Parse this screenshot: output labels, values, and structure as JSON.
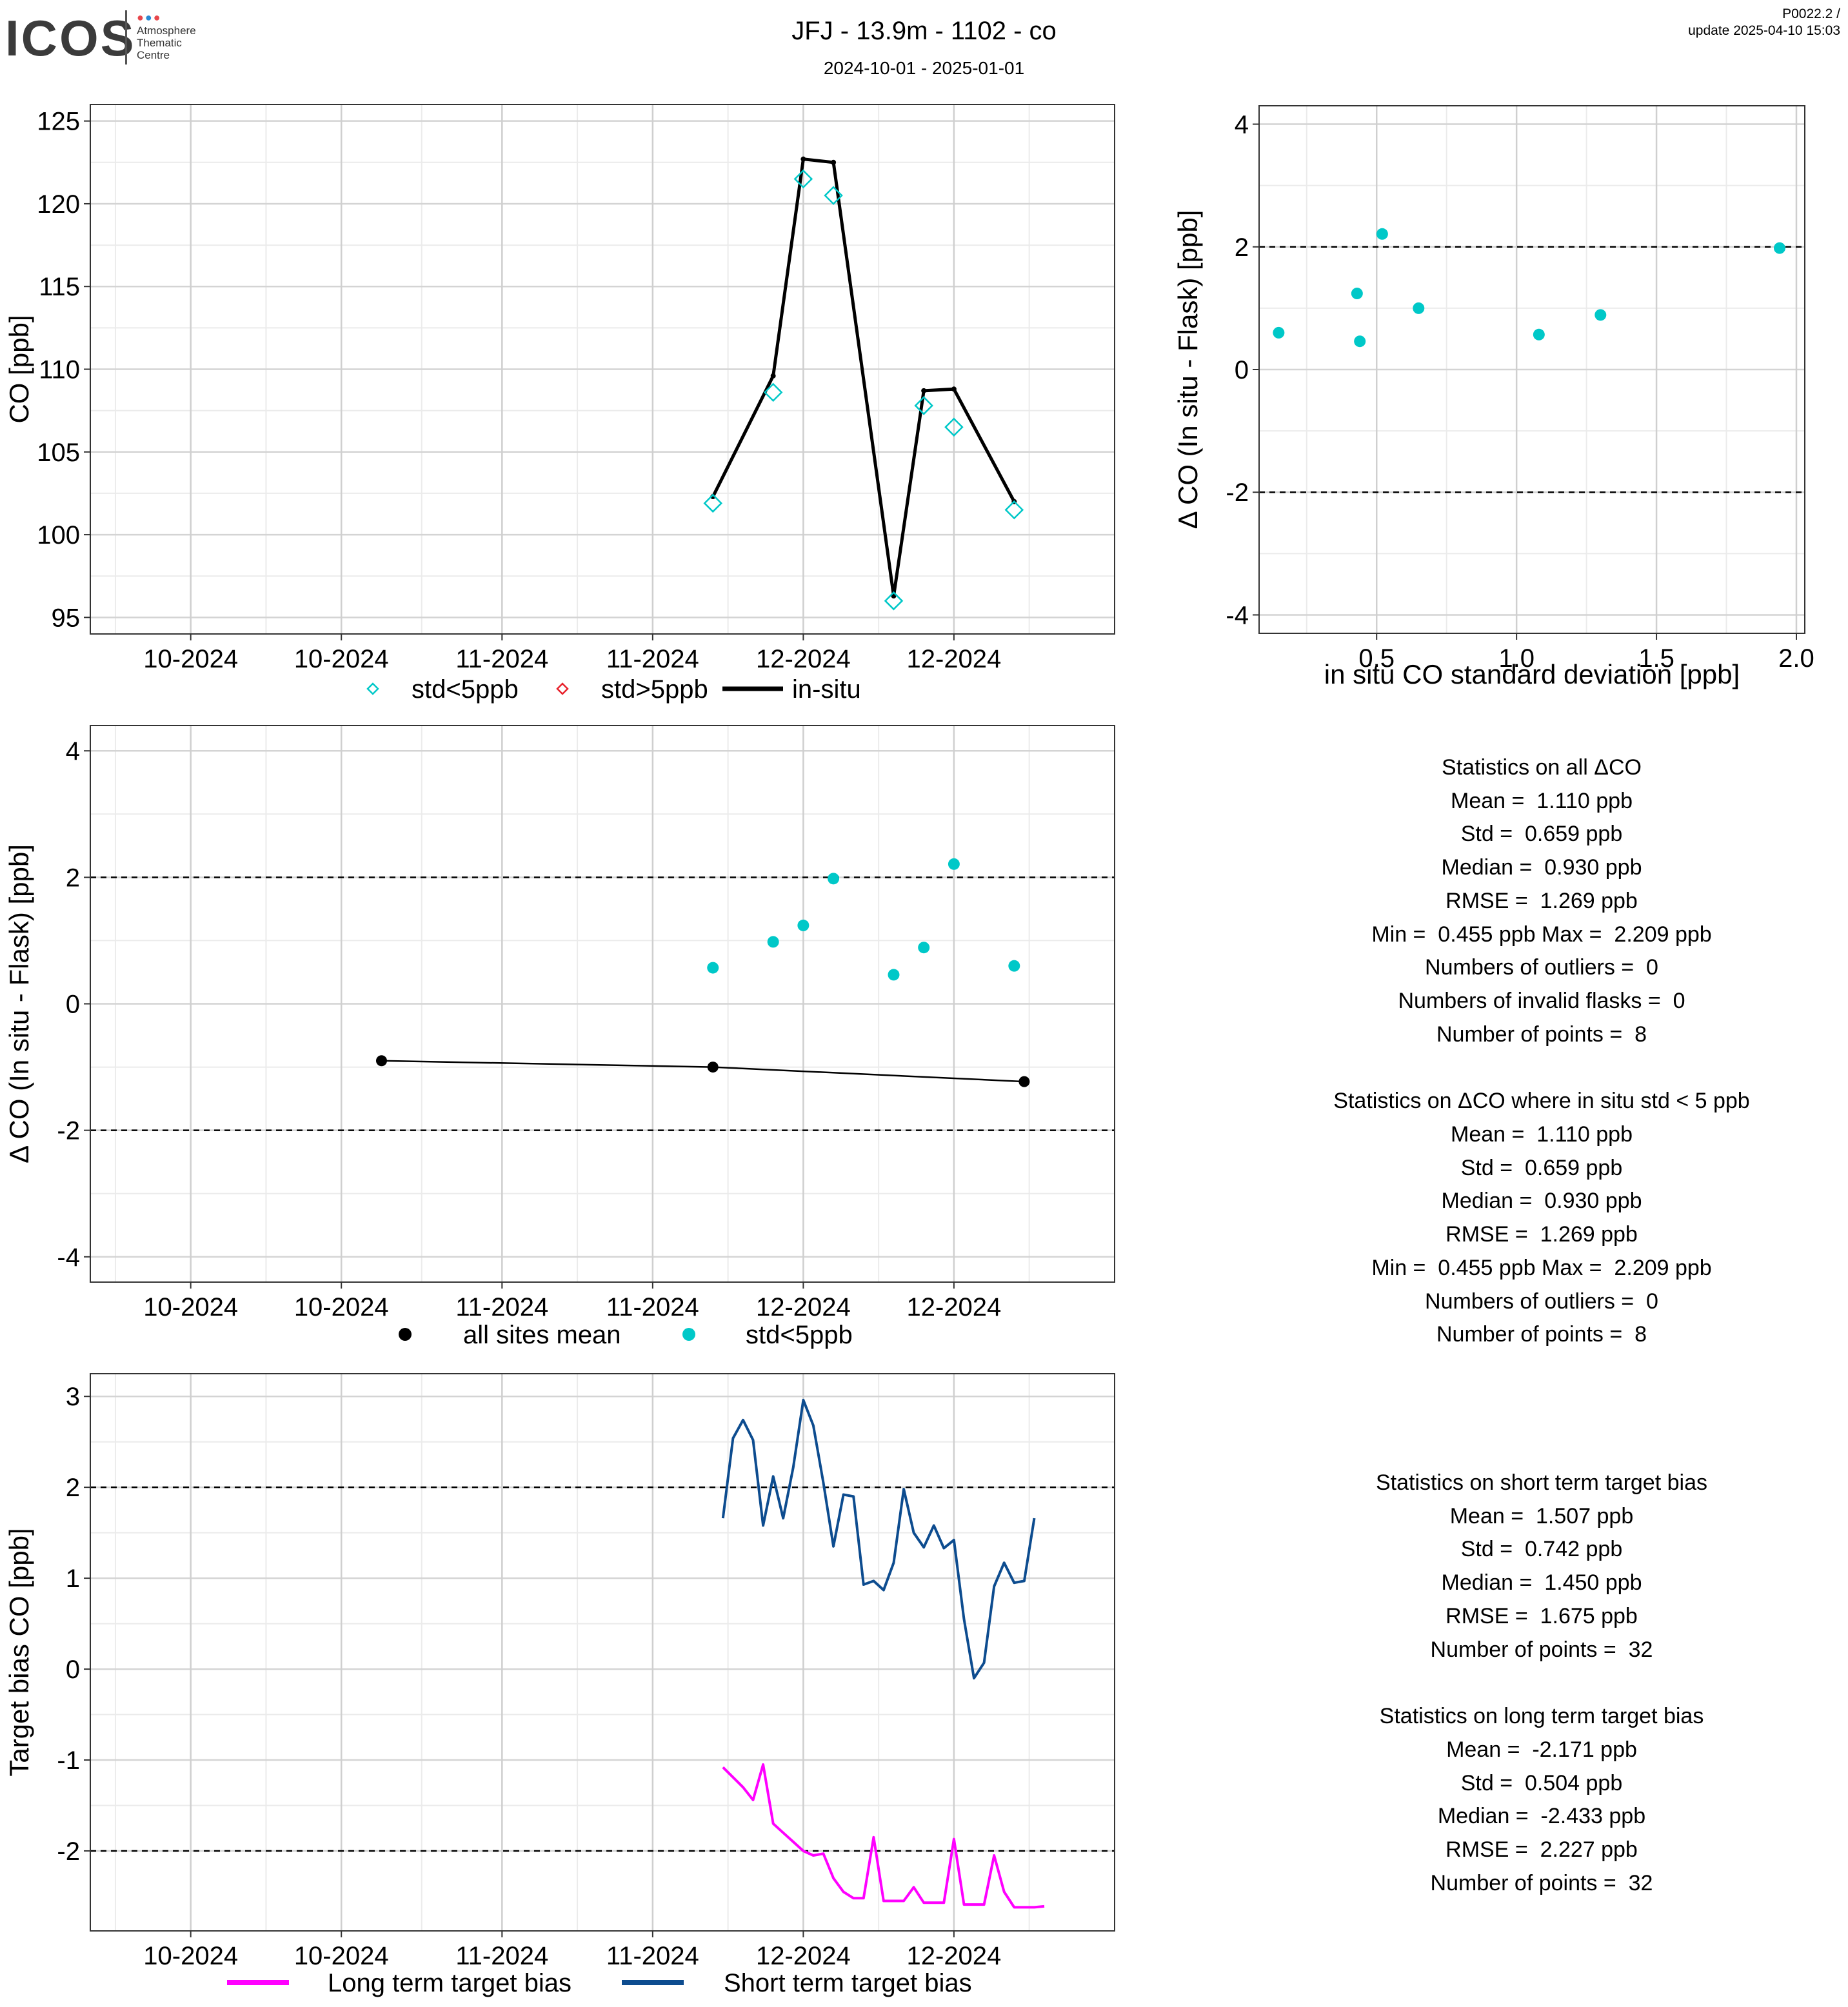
{
  "header": {
    "logo_text": "ICOS",
    "logo_sub": [
      "Atmosphere",
      "Thematic",
      "Centre"
    ],
    "title": "JFJ - 13.9m - 1102 - co",
    "period": "2024-10-01 - 2025-01-01",
    "version": "P0022.2 /",
    "update": "update  2025-04-10 15:03"
  },
  "colors": {
    "cyan": "#00C8C8",
    "red": "#E8202A",
    "black": "#000000",
    "magenta": "#FF00FF",
    "navy": "#0D4C8F",
    "logo_dot_1": "#e8474c",
    "logo_dot_2": "#2a8ad4",
    "logo_dot_3": "#e8474c"
  },
  "chart_data": [
    {
      "id": "co_timeseries",
      "type": "line",
      "ylabel": "CO [ppb]",
      "xlabel": "",
      "ylim": [
        94,
        126
      ],
      "x_range": [
        "2024-09-21",
        "2025-01-01"
      ],
      "x_ticks": [
        {
          "date": "2024-10-01",
          "label": "10-2024"
        },
        {
          "date": "2024-10-16",
          "label": "10-2024"
        },
        {
          "date": "2024-11-01",
          "label": "11-2024"
        },
        {
          "date": "2024-11-16",
          "label": "11-2024"
        },
        {
          "date": "2024-12-01",
          "label": "12-2024"
        },
        {
          "date": "2024-12-16",
          "label": "12-2024"
        }
      ],
      "y_ticks": [
        95,
        100,
        105,
        110,
        115,
        120,
        125
      ],
      "grid": true,
      "legend": {
        "position": "bottom",
        "entries": [
          {
            "label": "std<5ppb",
            "marker": "diamond",
            "color": "#00C8C8"
          },
          {
            "label": "std>5ppb",
            "marker": "diamond",
            "color": "#E8202A"
          },
          {
            "label": "in-situ",
            "marker": "line",
            "color": "#000000"
          }
        ]
      },
      "series": [
        {
          "name": "in-situ",
          "kind": "line",
          "color": "#000000",
          "x": [
            "2024-11-22",
            "2024-11-28",
            "2024-12-01",
            "2024-12-04",
            "2024-12-10",
            "2024-12-13",
            "2024-12-16",
            "2024-12-22"
          ],
          "values": [
            102.3,
            109.6,
            122.7,
            122.5,
            96.3,
            108.7,
            108.8,
            102.0
          ]
        },
        {
          "name": "std<5ppb",
          "kind": "diamond",
          "color": "#00C8C8",
          "x": [
            "2024-11-22",
            "2024-11-28",
            "2024-12-01",
            "2024-12-04",
            "2024-12-10",
            "2024-12-13",
            "2024-12-16",
            "2024-12-22"
          ],
          "values": [
            101.9,
            108.6,
            121.5,
            120.5,
            96.0,
            107.8,
            106.5,
            101.5
          ]
        }
      ]
    },
    {
      "id": "delta_vs_std",
      "type": "scatter",
      "xlabel": "in situ CO standard deviation [ppb]",
      "ylabel": "Δ CO (In situ - Flask) [ppb]",
      "xlim": [
        0.08,
        2.03
      ],
      "ylim": [
        -4.3,
        4.3
      ],
      "x_ticks": [
        0.5,
        1.0,
        1.5,
        2.0
      ],
      "x_tick_labels": [
        "0.5",
        "1.0",
        "1.5",
        "2.0"
      ],
      "y_ticks": [
        -4,
        -2,
        0,
        2,
        4
      ],
      "reference_lines": [
        2,
        -2
      ],
      "grid": true,
      "series": [
        {
          "name": "",
          "color": "#00C8C8",
          "x": [
            0.15,
            0.43,
            0.44,
            0.52,
            0.65,
            1.08,
            1.3,
            1.94
          ],
          "values": [
            0.6,
            1.24,
            0.46,
            2.21,
            1.0,
            0.57,
            0.89,
            1.98
          ]
        }
      ]
    },
    {
      "id": "delta_timeseries",
      "type": "scatter",
      "xlabel": "",
      "ylabel": "Δ CO (In situ - Flask) [ppb]",
      "ylim": [
        -4.4,
        4.4
      ],
      "x_range": [
        "2024-09-21",
        "2025-01-01"
      ],
      "x_ticks": [
        {
          "date": "2024-10-01",
          "label": "10-2024"
        },
        {
          "date": "2024-10-16",
          "label": "10-2024"
        },
        {
          "date": "2024-11-01",
          "label": "11-2024"
        },
        {
          "date": "2024-11-16",
          "label": "11-2024"
        },
        {
          "date": "2024-12-01",
          "label": "12-2024"
        },
        {
          "date": "2024-12-16",
          "label": "12-2024"
        }
      ],
      "y_ticks": [
        -4,
        -2,
        0,
        2,
        4
      ],
      "reference_lines": [
        2,
        -2
      ],
      "grid": true,
      "legend": {
        "position": "bottom",
        "entries": [
          {
            "label": "all sites mean",
            "marker": "dot",
            "color": "#000000"
          },
          {
            "label": "std<5ppb",
            "marker": "dot",
            "color": "#00C8C8"
          }
        ]
      },
      "series": [
        {
          "name": "all sites mean",
          "kind": "line-dot",
          "color": "#000000",
          "x": [
            "2024-10-20",
            "2024-11-22",
            "2024-12-23"
          ],
          "values": [
            -0.9,
            -1.0,
            -1.23
          ]
        },
        {
          "name": "std<5ppb",
          "kind": "dot",
          "color": "#00C8C8",
          "x": [
            "2024-11-22",
            "2024-11-28",
            "2024-12-01",
            "2024-12-04",
            "2024-12-10",
            "2024-12-13",
            "2024-12-16",
            "2024-12-22"
          ],
          "values": [
            0.57,
            0.98,
            1.24,
            1.98,
            0.46,
            0.89,
            2.21,
            0.6
          ]
        }
      ]
    },
    {
      "id": "target_bias",
      "type": "line",
      "xlabel": "",
      "ylabel": "Target bias CO [ppb]",
      "ylim": [
        -2.88,
        3.25
      ],
      "x_range": [
        "2024-09-21",
        "2025-01-01"
      ],
      "x_ticks": [
        {
          "date": "2024-10-01",
          "label": "10-2024"
        },
        {
          "date": "2024-10-16",
          "label": "10-2024"
        },
        {
          "date": "2024-11-01",
          "label": "11-2024"
        },
        {
          "date": "2024-11-16",
          "label": "11-2024"
        },
        {
          "date": "2024-12-01",
          "label": "12-2024"
        },
        {
          "date": "2024-12-16",
          "label": "12-2024"
        }
      ],
      "y_ticks": [
        -2,
        -1,
        0,
        1,
        2,
        3
      ],
      "reference_lines": [
        2,
        -2
      ],
      "grid": true,
      "legend": {
        "position": "bottom",
        "entries": [
          {
            "label": "Long term target bias",
            "marker": "line",
            "color": "#FF00FF"
          },
          {
            "label": "Short term target bias",
            "marker": "line",
            "color": "#0D4C8F"
          }
        ]
      },
      "series": [
        {
          "name": "Long term target bias",
          "color": "#FF00FF",
          "x": [
            "2024-11-23",
            "2024-11-25",
            "2024-11-26",
            "2024-11-27",
            "2024-11-28",
            "2024-11-29",
            "2024-11-30",
            "2024-12-01",
            "2024-12-02",
            "2024-12-03",
            "2024-12-04",
            "2024-12-05",
            "2024-12-06",
            "2024-12-07",
            "2024-12-08",
            "2024-12-09",
            "2024-12-10",
            "2024-12-11",
            "2024-12-12",
            "2024-12-13",
            "2024-12-14",
            "2024-12-15",
            "2024-12-16",
            "2024-12-17",
            "2024-12-18",
            "2024-12-19",
            "2024-12-20",
            "2024-12-21",
            "2024-12-22",
            "2024-12-23",
            "2024-12-24",
            "2024-12-25"
          ],
          "values": [
            -1.08,
            -1.3,
            -1.44,
            -1.05,
            -1.7,
            -1.8,
            -1.9,
            -2.0,
            -2.05,
            -2.03,
            -2.3,
            -2.45,
            -2.52,
            -2.52,
            -1.85,
            -2.55,
            -2.55,
            -2.55,
            -2.4,
            -2.57,
            -2.57,
            -2.57,
            -1.87,
            -2.59,
            -2.59,
            -2.59,
            -2.05,
            -2.45,
            -2.62,
            -2.62,
            -2.62,
            -2.61
          ]
        },
        {
          "name": "Short term target bias",
          "color": "#0D4C8F",
          "x": [
            "2024-11-23",
            "2024-11-24",
            "2024-11-25",
            "2024-11-26",
            "2024-11-27",
            "2024-11-28",
            "2024-11-29",
            "2024-11-30",
            "2024-12-01",
            "2024-12-02",
            "2024-12-03",
            "2024-12-04",
            "2024-12-05",
            "2024-12-06",
            "2024-12-07",
            "2024-12-08",
            "2024-12-09",
            "2024-12-10",
            "2024-12-11",
            "2024-12-12",
            "2024-12-13",
            "2024-12-14",
            "2024-12-15",
            "2024-12-16",
            "2024-12-17",
            "2024-12-18",
            "2024-12-19",
            "2024-12-20",
            "2024-12-21",
            "2024-12-22",
            "2024-12-23",
            "2024-12-24"
          ],
          "values": [
            1.66,
            2.54,
            2.74,
            2.52,
            1.58,
            2.12,
            1.66,
            2.22,
            2.96,
            2.68,
            2.05,
            1.35,
            1.92,
            1.9,
            0.93,
            0.97,
            0.87,
            1.17,
            1.98,
            1.5,
            1.34,
            1.58,
            1.33,
            1.42,
            0.55,
            -0.1,
            0.07,
            0.91,
            1.17,
            0.95,
            0.97,
            1.66
          ]
        }
      ]
    }
  ],
  "stats": {
    "all": {
      "title": "Statistics on all ΔCO",
      "mean": "Mean =  1.110 ppb",
      "std": "Std =  0.659 ppb",
      "median": "Median =  0.930 ppb",
      "rmse": "RMSE =  1.269 ppb",
      "minmax": "Min =  0.455 ppb Max =  2.209 ppb",
      "outliers": "Numbers of outliers =  0",
      "invalid": "Numbers of invalid flasks =  0",
      "points": "Number of points =  8"
    },
    "std_lt5": {
      "title": "Statistics on ΔCO where in situ std < 5 ppb",
      "mean": "Mean =  1.110 ppb",
      "std": "Std =  0.659 ppb",
      "median": "Median =  0.930 ppb",
      "rmse": "RMSE =  1.269 ppb",
      "minmax": "Min =  0.455 ppb Max =  2.209 ppb",
      "outliers": "Numbers of outliers =  0",
      "points": "Number of points =  8"
    },
    "short_term": {
      "title": "Statistics on short term target bias",
      "mean": "Mean =  1.507 ppb",
      "std": "Std =  0.742 ppb",
      "median": "Median =  1.450 ppb",
      "rmse": "RMSE =  1.675 ppb",
      "points": "Number of points =  32"
    },
    "long_term": {
      "title": "Statistics on long term target bias",
      "mean": "Mean =  -2.171 ppb",
      "std": "Std =  0.504 ppb",
      "median": "Median =  -2.433 ppb",
      "rmse": "RMSE =  2.227 ppb",
      "points": "Number of points =  32"
    }
  }
}
